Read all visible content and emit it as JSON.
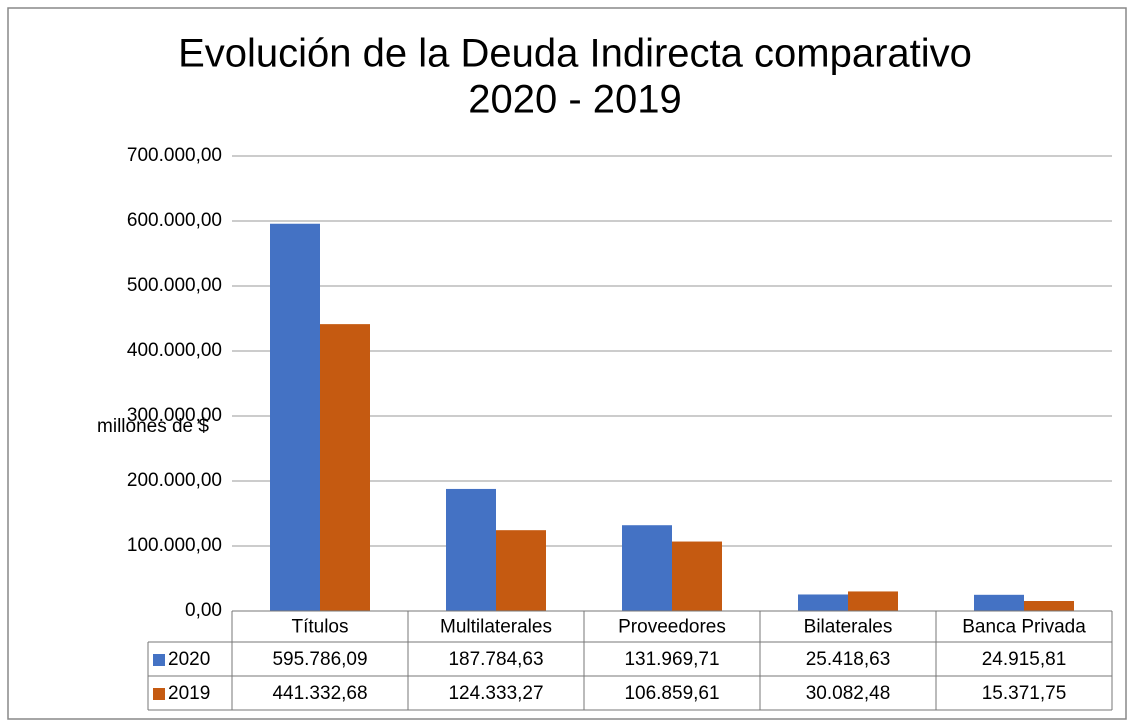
{
  "chart_data": {
    "type": "bar",
    "title": [
      "Evolución de la Deuda Indirecta comparativo",
      "2020 - 2019"
    ],
    "ylabel": "millones de $",
    "categories": [
      "Títulos",
      "Multilaterales",
      "Proveedores",
      "Bilaterales",
      "Banca Privada"
    ],
    "series": [
      {
        "name": "2020",
        "color": "#4472c4",
        "values": [
          595786.09,
          187784.63,
          131969.71,
          25418.63,
          24915.81
        ],
        "value_labels": [
          "595.786,09",
          "187.784,63",
          "131.969,71",
          "25.418,63",
          "24.915,81"
        ]
      },
      {
        "name": "2019",
        "color": "#c55a11",
        "values": [
          441332.68,
          124333.27,
          106859.61,
          30082.48,
          15371.75
        ],
        "value_labels": [
          "441.332,68",
          "124.333,27",
          "106.859,61",
          "30.082,48",
          "15.371,75"
        ]
      }
    ],
    "ylim": [
      0,
      700000
    ],
    "yticks": [
      {
        "value": 0,
        "label": "0,00"
      },
      {
        "value": 100000,
        "label": "100.000,00"
      },
      {
        "value": 200000,
        "label": "200.000,00"
      },
      {
        "value": 300000,
        "label": "300.000,00"
      },
      {
        "value": 400000,
        "label": "400.000,00"
      },
      {
        "value": 500000,
        "label": "500.000,00"
      },
      {
        "value": 600000,
        "label": "600.000,00"
      },
      {
        "value": 700000,
        "label": "700.000,00"
      }
    ],
    "grid": true
  }
}
